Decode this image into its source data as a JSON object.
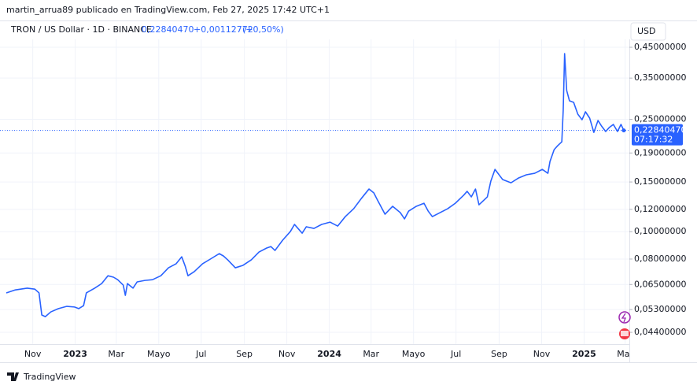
{
  "header": {
    "author_line": "martin_arrua89 publicado en TradingView.com, Feb 27, 2025 17:42 UTC+1",
    "symbol": "TRON / US Dollar · 1D · BINANCE",
    "price": "0,22840470",
    "change": "+0,00112772",
    "change_pct": "(+0,50%)"
  },
  "chart_data": {
    "type": "line",
    "log_scale": true,
    "grid": true,
    "currency": "USD",
    "countdown": "07:17:32",
    "xlim": [
      "2022-09-24",
      "2025-03-07"
    ],
    "ylim": [
      0.04,
      0.46
    ],
    "yticks": [
      {
        "value": 0.45,
        "label": "0,45000000"
      },
      {
        "value": 0.35,
        "label": "0,35000000"
      },
      {
        "value": 0.25,
        "label": "0,25000000"
      },
      {
        "value": 0.19,
        "label": "0,19000000"
      },
      {
        "value": 0.15,
        "label": "0,15000000"
      },
      {
        "value": 0.12,
        "label": "0,12000000"
      },
      {
        "value": 0.1,
        "label": "0,10000000"
      },
      {
        "value": 0.08,
        "label": "0,08000000"
      },
      {
        "value": 0.065,
        "label": "0,06500000"
      },
      {
        "value": 0.053,
        "label": "0,05300000"
      },
      {
        "value": 0.044,
        "label": "0,04400000"
      }
    ],
    "xticks": [
      {
        "value": "2022-11-01",
        "label": "Nov"
      },
      {
        "value": "2023-01-01",
        "label": "2023"
      },
      {
        "value": "2023-03-01",
        "label": "Mar"
      },
      {
        "value": "2023-05-01",
        "label": "Mayo"
      },
      {
        "value": "2023-07-01",
        "label": "Jul"
      },
      {
        "value": "2023-09-01",
        "label": "Sep"
      },
      {
        "value": "2023-11-01",
        "label": "Nov"
      },
      {
        "value": "2024-01-01",
        "label": "2024"
      },
      {
        "value": "2024-03-01",
        "label": "Mar"
      },
      {
        "value": "2024-05-01",
        "label": "Mayo"
      },
      {
        "value": "2024-07-01",
        "label": "Jul"
      },
      {
        "value": "2024-09-01",
        "label": "Sep"
      },
      {
        "value": "2024-11-01",
        "label": "Nov"
      },
      {
        "value": "2025-01-01",
        "label": "2025"
      },
      {
        "value": "2025-03-01",
        "label": "Mar"
      }
    ],
    "x": [
      "2022-09-24",
      "2022-10-07",
      "2022-10-24",
      "2022-11-04",
      "2022-11-10",
      "2022-11-14",
      "2022-11-19",
      "2022-11-27",
      "2022-12-08",
      "2022-12-20",
      "2022-12-31",
      "2023-01-06",
      "2023-01-13",
      "2023-01-17",
      "2023-01-29",
      "2023-02-08",
      "2023-02-17",
      "2023-02-25",
      "2023-03-03",
      "2023-03-11",
      "2023-03-14",
      "2023-03-17",
      "2023-03-25",
      "2023-03-31",
      "2023-04-11",
      "2023-04-22",
      "2023-05-04",
      "2023-05-15",
      "2023-05-26",
      "2023-06-03",
      "2023-06-08",
      "2023-06-12",
      "2023-06-21",
      "2023-07-03",
      "2023-07-16",
      "2023-07-27",
      "2023-08-02",
      "2023-08-08",
      "2023-08-19",
      "2023-08-30",
      "2023-09-11",
      "2023-09-22",
      "2023-10-03",
      "2023-10-09",
      "2023-10-15",
      "2023-10-26",
      "2023-11-06",
      "2023-11-12",
      "2023-11-17",
      "2023-11-23",
      "2023-11-29",
      "2023-12-10",
      "2023-12-21",
      "2024-01-02",
      "2024-01-13",
      "2024-01-24",
      "2024-02-05",
      "2024-02-16",
      "2024-02-27",
      "2024-03-05",
      "2024-03-09",
      "2024-03-21",
      "2024-04-01",
      "2024-04-12",
      "2024-04-18",
      "2024-04-24",
      "2024-05-05",
      "2024-05-16",
      "2024-05-22",
      "2024-05-28",
      "2024-06-08",
      "2024-06-19",
      "2024-06-30",
      "2024-07-12",
      "2024-07-17",
      "2024-07-23",
      "2024-07-29",
      "2024-08-03",
      "2024-08-15",
      "2024-08-20",
      "2024-08-26",
      "2024-09-06",
      "2024-09-18",
      "2024-09-29",
      "2024-10-10",
      "2024-10-22",
      "2024-11-02",
      "2024-11-10",
      "2024-11-13",
      "2024-11-19",
      "2024-11-24",
      "2024-11-30",
      "2024-12-02",
      "2024-12-04",
      "2024-12-07",
      "2024-12-11",
      "2024-12-17",
      "2024-12-23",
      "2024-12-29",
      "2025-01-03",
      "2025-01-09",
      "2025-01-15",
      "2025-01-21",
      "2025-01-26",
      "2025-02-01",
      "2025-02-06",
      "2025-02-12",
      "2025-02-18",
      "2025-02-23",
      "2025-02-27"
    ],
    "series": [
      {
        "color": "#2962ff",
        "values": [
          0.0607,
          0.0622,
          0.0631,
          0.0626,
          0.0607,
          0.0507,
          0.05,
          0.052,
          0.0534,
          0.0544,
          0.0541,
          0.0534,
          0.0547,
          0.0607,
          0.0631,
          0.0655,
          0.0698,
          0.069,
          0.0676,
          0.0647,
          0.0595,
          0.0655,
          0.0631,
          0.0664,
          0.0672,
          0.0676,
          0.0698,
          0.0745,
          0.077,
          0.0815,
          0.0755,
          0.0698,
          0.0722,
          0.077,
          0.0805,
          0.0836,
          0.082,
          0.0795,
          0.0745,
          0.076,
          0.0795,
          0.0847,
          0.0875,
          0.0886,
          0.0858,
          0.0933,
          0.1001,
          0.1061,
          0.1027,
          0.0988,
          0.1041,
          0.1027,
          0.1061,
          0.1081,
          0.1047,
          0.1131,
          0.1206,
          0.1311,
          0.1416,
          0.1372,
          0.1311,
          0.1153,
          0.123,
          0.1168,
          0.111,
          0.1183,
          0.123,
          0.1261,
          0.1183,
          0.1131,
          0.1168,
          0.1206,
          0.1261,
          0.1346,
          0.139,
          0.1328,
          0.1416,
          0.1245,
          0.1328,
          0.151,
          0.1662,
          0.153,
          0.149,
          0.155,
          0.159,
          0.161,
          0.1662,
          0.161,
          0.1773,
          0.1953,
          0.2016,
          0.2082,
          0.2692,
          0.4275,
          0.3162,
          0.2907,
          0.287,
          0.2607,
          0.2492,
          0.2658,
          0.2525,
          0.2248,
          0.2477,
          0.2368,
          0.2264,
          0.2337,
          0.2399,
          0.2264,
          0.2399,
          0.2284047
        ]
      }
    ]
  },
  "footer": {
    "brand": "TradingView"
  }
}
